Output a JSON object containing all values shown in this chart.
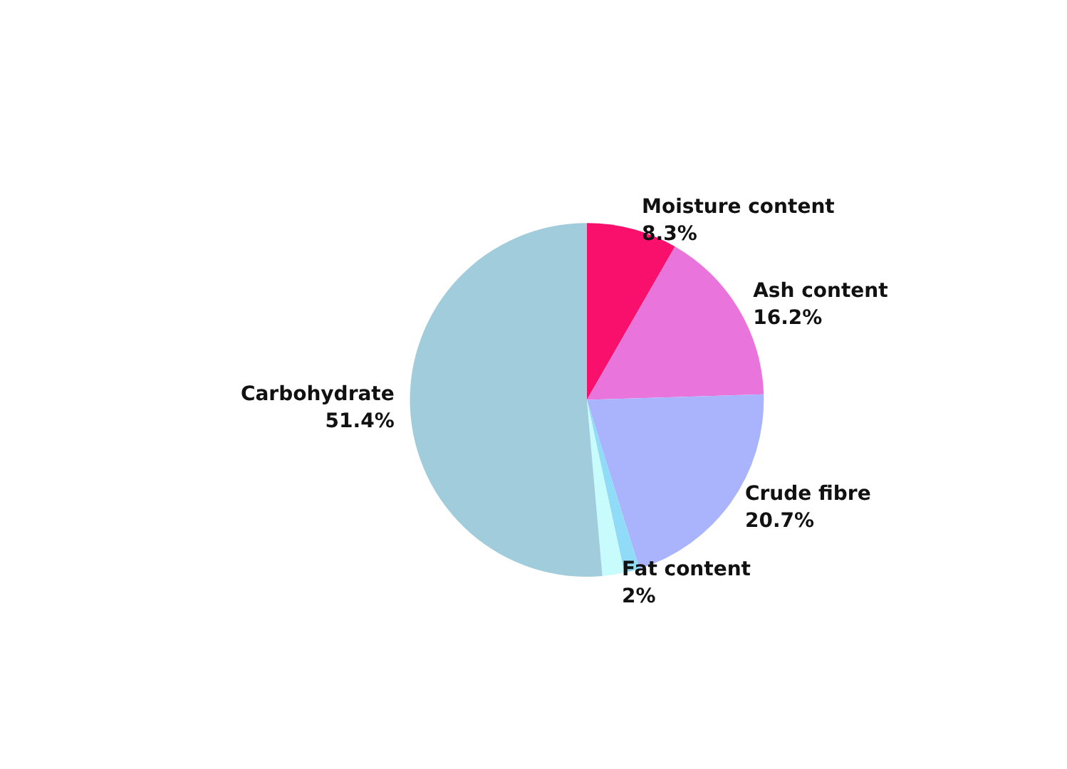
{
  "chart_data": {
    "type": "pie",
    "categories": [
      "Moisture content",
      "Ash content",
      "Crude fibre",
      null,
      "Fat content",
      "Carbohydrate"
    ],
    "values": [
      8.3,
      16.2,
      20.7,
      1.4,
      2,
      51.4
    ],
    "value_labels": [
      "8.3%",
      "16.2%",
      "20.7%",
      null,
      "2%",
      "51.4%"
    ],
    "colors": [
      "#f8106c",
      "#e874dc",
      "#aab4fc",
      "#90dcf8",
      "#c8fcfc",
      "#a0ccdc"
    ],
    "legend": false
  }
}
